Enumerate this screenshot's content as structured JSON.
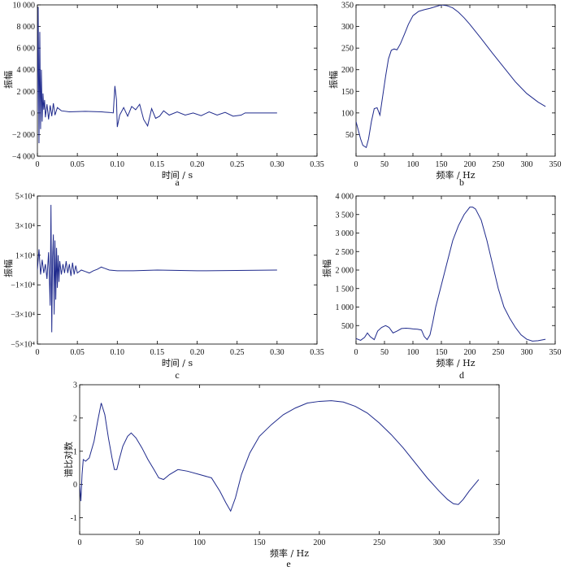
{
  "chart_data": [
    {
      "id": "a",
      "type": "line",
      "panel_label": "a",
      "xlabel": "时间 / s",
      "ylabel": "振幅",
      "xlim": [
        0,
        0.35
      ],
      "ylim": [
        -4000,
        10000
      ],
      "xticks": [
        0,
        0.05,
        0.1,
        0.15,
        0.2,
        0.25,
        0.3,
        0.35
      ],
      "xtick_labels": [
        "0",
        "0.05",
        "0.10",
        "0.15",
        "0.20",
        "0.25",
        "0.30",
        "0.35"
      ],
      "yticks": [
        -4000,
        -2000,
        0,
        2000,
        4000,
        6000,
        8000,
        10000
      ],
      "ytick_labels": [
        "−4 000",
        "−2 000",
        "0",
        "2 000",
        "4 000",
        "6 000",
        "8 000",
        "10 000"
      ],
      "series": [
        {
          "color": "#1f2a8c",
          "x": [
            0,
            0.001,
            0.002,
            0.003,
            0.004,
            0.005,
            0.006,
            0.007,
            0.008,
            0.009,
            0.01,
            0.012,
            0.014,
            0.016,
            0.018,
            0.02,
            0.022,
            0.025,
            0.03,
            0.04,
            0.06,
            0.08,
            0.09,
            0.095,
            0.097,
            0.099,
            0.1,
            0.103,
            0.108,
            0.113,
            0.118,
            0.123,
            0.128,
            0.133,
            0.138,
            0.143,
            0.148,
            0.153,
            0.158,
            0.165,
            0.175,
            0.185,
            0.195,
            0.205,
            0.215,
            0.225,
            0.235,
            0.245,
            0.255,
            0.26,
            0.3
          ],
          "y": [
            0,
            9800,
            -2800,
            7500,
            -1500,
            4000,
            -800,
            1800,
            300,
            1200,
            -400,
            800,
            -600,
            700,
            -300,
            900,
            -200,
            500,
            200,
            100,
            150,
            100,
            50,
            0,
            2500,
            1200,
            -1300,
            -200,
            500,
            -300,
            600,
            300,
            800,
            -600,
            -1200,
            400,
            -500,
            -300,
            200,
            -200,
            100,
            -200,
            0,
            -250,
            100,
            -200,
            50,
            -300,
            -200,
            0,
            0
          ]
        }
      ]
    },
    {
      "id": "b",
      "type": "line",
      "panel_label": "b",
      "xlabel": "频率 / Hz",
      "ylabel": "振幅",
      "xlim": [
        0,
        350
      ],
      "ylim": [
        0,
        350
      ],
      "xticks": [
        0,
        50,
        100,
        150,
        200,
        250,
        300,
        350
      ],
      "xtick_labels": [
        "0",
        "50",
        "100",
        "150",
        "200",
        "250",
        "300",
        "350"
      ],
      "yticks": [
        50,
        100,
        150,
        200,
        250,
        300,
        350
      ],
      "ytick_labels": [
        "50",
        "100",
        "150",
        "200",
        "250",
        "300",
        "350"
      ],
      "series": [
        {
          "color": "#3b45b0",
          "x": [
            0,
            3,
            8,
            12,
            18,
            22,
            27,
            32,
            37,
            42,
            47,
            52,
            57,
            62,
            67,
            72,
            78,
            85,
            92,
            100,
            110,
            120,
            130,
            140,
            150,
            160,
            170,
            180,
            190,
            200,
            220,
            240,
            260,
            280,
            300,
            320,
            333
          ],
          "y": [
            80,
            65,
            40,
            25,
            20,
            40,
            80,
            110,
            112,
            95,
            140,
            185,
            225,
            245,
            248,
            246,
            260,
            282,
            305,
            325,
            335,
            339,
            342,
            346,
            350,
            348,
            343,
            333,
            320,
            305,
            272,
            238,
            205,
            172,
            145,
            125,
            115
          ]
        }
      ]
    },
    {
      "id": "c",
      "type": "line",
      "panel_label": "c",
      "xlabel": "时间 / s",
      "ylabel": "振幅",
      "xlim": [
        0,
        0.35
      ],
      "ylim": [
        -50000,
        50000
      ],
      "xticks": [
        0,
        0.05,
        0.1,
        0.15,
        0.2,
        0.25,
        0.3,
        0.35
      ],
      "xtick_labels": [
        "0",
        "0.05",
        "0.10",
        "0.15",
        "0.20",
        "0.25",
        "0.30",
        "0.35"
      ],
      "yticks": [
        -50000,
        -30000,
        -10000,
        10000,
        30000,
        50000
      ],
      "ytick_labels": [
        "−5×10⁴",
        "−3×10⁴",
        "−1×10⁴",
        "1×10⁴",
        "3×10⁴",
        "5×10⁴"
      ],
      "series": [
        {
          "color": "#1f2a8c",
          "x": [
            0,
            0.002,
            0.004,
            0.006,
            0.008,
            0.01,
            0.012,
            0.014,
            0.016,
            0.017,
            0.018,
            0.019,
            0.02,
            0.021,
            0.022,
            0.023,
            0.024,
            0.025,
            0.026,
            0.027,
            0.028,
            0.03,
            0.032,
            0.034,
            0.036,
            0.038,
            0.04,
            0.042,
            0.044,
            0.046,
            0.048,
            0.05,
            0.055,
            0.06,
            0.065,
            0.07,
            0.075,
            0.08,
            0.085,
            0.09,
            0.1,
            0.12,
            0.15,
            0.2,
            0.25,
            0.3
          ],
          "y": [
            0,
            14000,
            -3000,
            7000,
            -2000,
            4000,
            -6000,
            12000,
            -24000,
            44000,
            -42000,
            8000,
            24000,
            -30000,
            20000,
            -20000,
            15000,
            -12000,
            10000,
            -8000,
            6000,
            -3000,
            4000,
            -2000,
            6000,
            -2000,
            4000,
            -4000,
            5000,
            -3000,
            3000,
            -2000,
            0,
            -1000,
            -2000,
            -500,
            500,
            2000,
            1000,
            0,
            -500,
            -500,
            0,
            -500,
            -300,
            0
          ]
        }
      ]
    },
    {
      "id": "d",
      "type": "line",
      "panel_label": "d",
      "xlabel": "频率 / Hz",
      "ylabel": "振幅",
      "xlim": [
        0,
        350
      ],
      "ylim": [
        0,
        4000
      ],
      "xticks": [
        0,
        50,
        100,
        150,
        200,
        250,
        300,
        350
      ],
      "xtick_labels": [
        "0",
        "50",
        "100",
        "150",
        "200",
        "250",
        "300",
        "350"
      ],
      "yticks": [
        500,
        1000,
        1500,
        2000,
        2500,
        3000,
        3500,
        4000
      ],
      "ytick_labels": [
        "500",
        "1 000",
        "1 500",
        "2 000",
        "2 500",
        "3 000",
        "3 500",
        "4 000"
      ],
      "series": [
        {
          "color": "#3b45b0",
          "x": [
            0,
            8,
            15,
            20,
            25,
            32,
            38,
            45,
            52,
            58,
            65,
            72,
            80,
            88,
            95,
            100,
            108,
            115,
            120,
            125,
            130,
            135,
            140,
            150,
            160,
            170,
            180,
            190,
            200,
            205,
            210,
            220,
            230,
            240,
            250,
            260,
            270,
            280,
            290,
            300,
            310,
            320,
            333
          ],
          "y": [
            150,
            100,
            180,
            300,
            200,
            120,
            350,
            450,
            500,
            450,
            300,
            350,
            420,
            430,
            420,
            410,
            400,
            380,
            200,
            120,
            250,
            600,
            1000,
            1600,
            2200,
            2800,
            3200,
            3500,
            3700,
            3700,
            3650,
            3350,
            2800,
            2150,
            1500,
            1000,
            700,
            450,
            250,
            130,
            80,
            90,
            130
          ]
        }
      ]
    },
    {
      "id": "e",
      "type": "line",
      "panel_label": "e",
      "xlabel": "频率 / Hz",
      "ylabel": "谱比对数",
      "xlim": [
        0,
        350
      ],
      "ylim": [
        -1.5,
        3
      ],
      "xticks": [
        0,
        50,
        100,
        150,
        200,
        250,
        300,
        350
      ],
      "xtick_labels": [
        "0",
        "50",
        "100",
        "150",
        "200",
        "250",
        "300",
        "350"
      ],
      "yticks": [
        -1,
        0,
        1,
        2,
        3
      ],
      "ytick_labels": [
        "-1",
        "0",
        "1",
        "2",
        "3"
      ],
      "series": [
        {
          "color": "#1f2a8c",
          "x": [
            0,
            1,
            2,
            3,
            5,
            8,
            12,
            15,
            18,
            21,
            24,
            27,
            29,
            31,
            33,
            36,
            40,
            43,
            47,
            52,
            57,
            62,
            66,
            70,
            75,
            82,
            90,
            100,
            110,
            117,
            122,
            126,
            130,
            135,
            142,
            150,
            160,
            170,
            180,
            190,
            200,
            210,
            220,
            230,
            240,
            250,
            260,
            270,
            280,
            290,
            300,
            307,
            312,
            316,
            320,
            325,
            333
          ],
          "y": [
            0,
            -0.5,
            0.3,
            0.75,
            0.7,
            0.8,
            1.3,
            1.9,
            2.45,
            2.1,
            1.4,
            0.8,
            0.45,
            0.45,
            0.75,
            1.15,
            1.45,
            1.55,
            1.4,
            1.1,
            0.75,
            0.45,
            0.2,
            0.15,
            0.3,
            0.45,
            0.4,
            0.3,
            0.2,
            -0.2,
            -0.55,
            -0.8,
            -0.4,
            0.3,
            0.95,
            1.45,
            1.8,
            2.1,
            2.3,
            2.45,
            2.5,
            2.52,
            2.48,
            2.35,
            2.15,
            1.85,
            1.5,
            1.1,
            0.65,
            0.2,
            -0.2,
            -0.45,
            -0.58,
            -0.6,
            -0.45,
            -0.2,
            0.15
          ]
        }
      ]
    }
  ]
}
